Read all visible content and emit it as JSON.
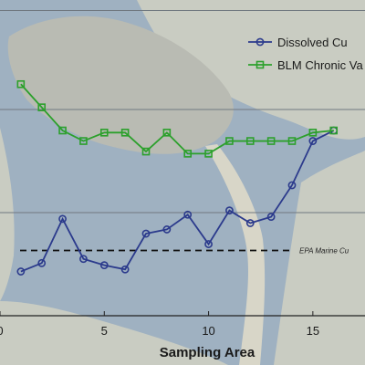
{
  "chart_data": {
    "type": "line",
    "xlabel": "Sampling Area",
    "ylabel": "",
    "xlim": [
      0,
      17.5
    ],
    "ylim": [
      0,
      15
    ],
    "x_ticks": [
      0,
      5,
      10,
      15
    ],
    "x_tick_labels": [
      "0",
      "5",
      "10",
      "15"
    ],
    "grid": "horizontal lines",
    "legend_position": "top-right",
    "series": [
      {
        "name": "Dissolved Cu",
        "color": "#2b3a8c",
        "marker": "circle",
        "x": [
          1,
          2,
          3,
          4,
          5,
          6,
          7,
          8,
          9,
          10,
          11,
          12,
          13,
          14,
          15,
          16
        ],
        "y": [
          2.1,
          2.5,
          4.6,
          2.7,
          2.4,
          2.2,
          3.9,
          4.1,
          4.8,
          3.4,
          5.0,
          4.4,
          4.7,
          6.2,
          8.3,
          8.8
        ]
      },
      {
        "name": "BLM Chronic Va",
        "color": "#2ca02c",
        "marker": "square",
        "x": [
          1,
          2,
          3,
          4,
          5,
          6,
          7,
          8,
          9,
          10,
          11,
          12,
          13,
          14,
          15,
          16
        ],
        "y": [
          11.0,
          9.9,
          8.8,
          8.3,
          8.7,
          8.7,
          7.8,
          8.7,
          7.7,
          7.7,
          8.3,
          8.3,
          8.3,
          8.3,
          8.7,
          8.8
        ]
      }
    ],
    "reference_line": {
      "label": "EPA Marine Cu",
      "y": 3.1,
      "style": "dashed"
    }
  },
  "colors": {
    "water": "#9fb1c1",
    "land": "#c9ccc2",
    "urban": "#b9bbb3",
    "beach": "#d8d6c8"
  }
}
